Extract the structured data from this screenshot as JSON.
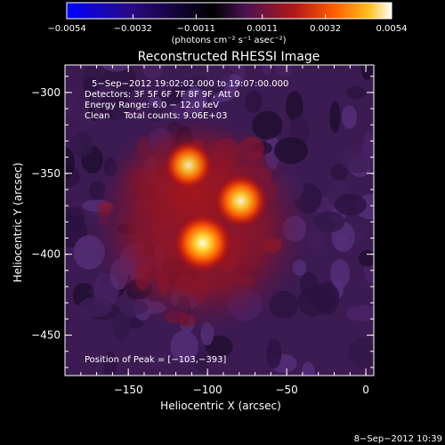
{
  "colorbar": {
    "ticks": [
      {
        "value": -0.0054,
        "label": "−0.0054"
      },
      {
        "value": -0.0032,
        "label": "−0.0032"
      },
      {
        "value": -0.0011,
        "label": "−0.0011"
      },
      {
        "value": 0.0011,
        "label": "0.0011"
      },
      {
        "value": 0.0032,
        "label": "0.0032"
      },
      {
        "value": 0.0054,
        "label": "0.0054"
      }
    ],
    "range": [
      -0.0054,
      0.0054
    ],
    "units_label": "(photons cm⁻² s⁻¹ asec⁻²)",
    "colors": [
      "#0000ff",
      "#330066",
      "#000000",
      "#5a1e5a",
      "#b41414",
      "#ff5000",
      "#ffaa00",
      "#ffffff"
    ]
  },
  "plot": {
    "title": "Reconstructed RHESSI Image",
    "xlabel": "Heliocentric X (arcsec)",
    "ylabel": "Heliocentric Y (arcsec)",
    "xlim": [
      -190,
      5
    ],
    "ylim": [
      -475,
      -283
    ],
    "xticks": [
      {
        "value": -150,
        "label": "−150"
      },
      {
        "value": -100,
        "label": "−100"
      },
      {
        "value": -50,
        "label": "−50"
      },
      {
        "value": 0,
        "label": "0"
      }
    ],
    "yticks": [
      {
        "value": -300,
        "label": "−300"
      },
      {
        "value": -350,
        "label": "−350"
      },
      {
        "value": -400,
        "label": "−400"
      },
      {
        "value": -450,
        "label": "−450"
      }
    ],
    "background_color": "#3c1a52",
    "info_lines": [
      "5−Sep−2012 19:02:02.000 to 19:07:00.000",
      "Detectors: 3F 5F 6F 7F 8F 9F, Att 0",
      "Energy Range: 6.0 − 12.0 keV",
      "Clean     Total counts: 9.06E+03"
    ],
    "peak_label": "Position of Peak = [−103,−393]",
    "sources": [
      {
        "x": -103,
        "y": -393,
        "intensity": 1.0
      },
      {
        "x": -79,
        "y": -367,
        "intensity": 0.85
      },
      {
        "x": -112,
        "y": -345,
        "intensity": 0.7
      }
    ]
  },
  "footer": {
    "timestamp": "8−Sep−2012 10:39"
  }
}
